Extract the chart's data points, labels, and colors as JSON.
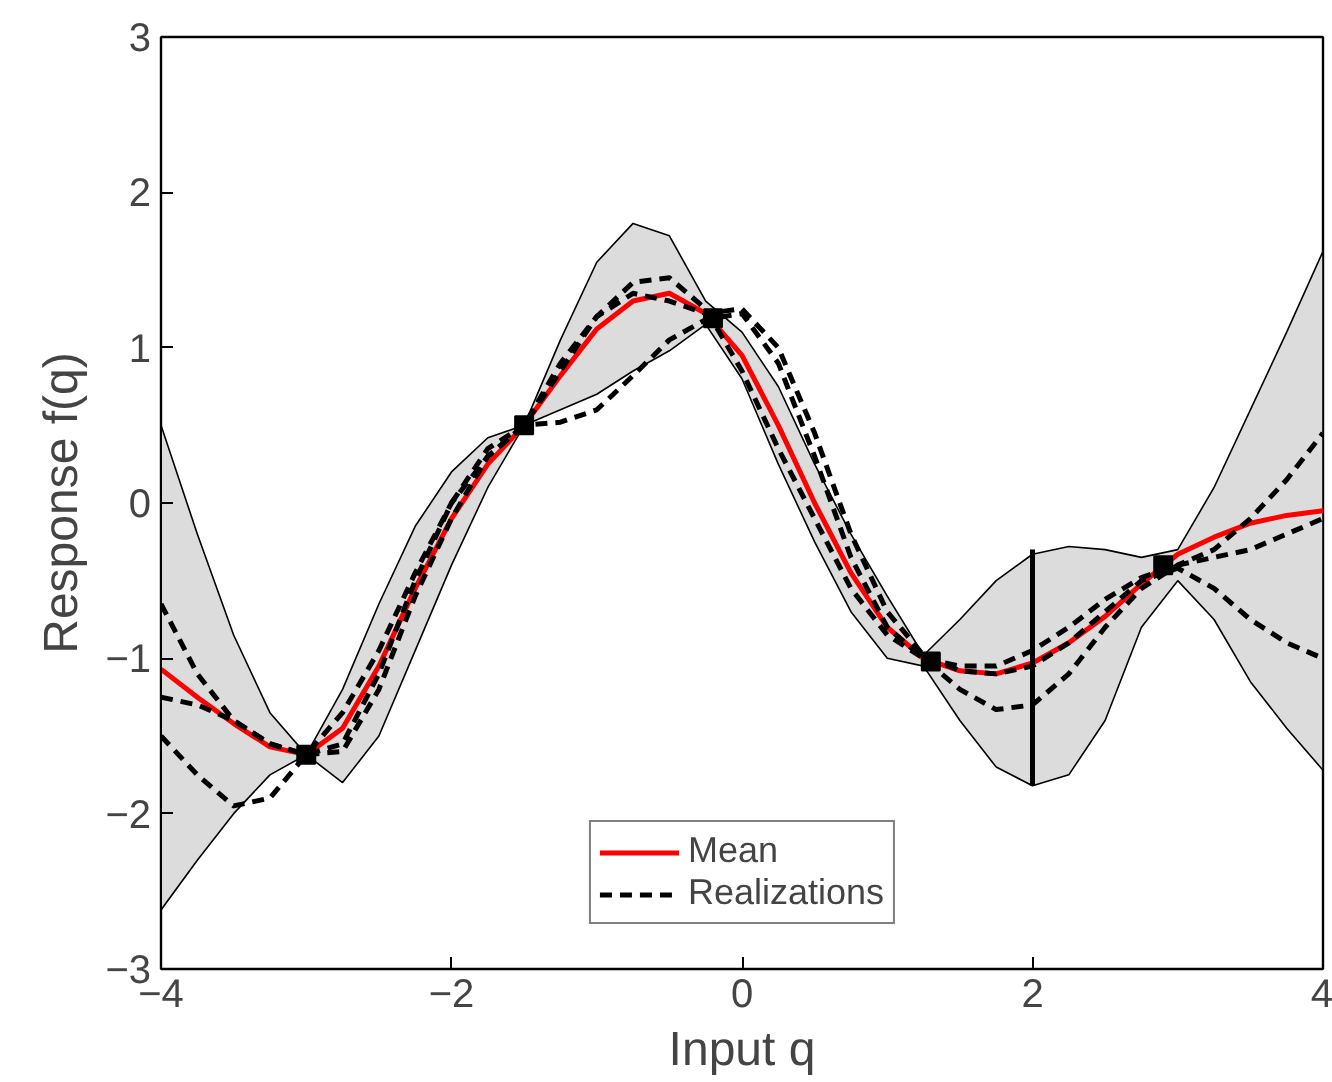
{
  "chart_data": {
    "type": "line",
    "xlabel": "Input q",
    "ylabel": "Response f(q)",
    "x": [
      -4,
      -3.75,
      -3.5,
      -3.25,
      -3,
      -2.75,
      -2.5,
      -2.25,
      -2,
      -1.75,
      -1.5,
      -1.25,
      -1,
      -0.75,
      -0.5,
      -0.25,
      0,
      0.25,
      0.5,
      0.75,
      1,
      1.25,
      1.5,
      1.75,
      2,
      2.25,
      2.5,
      2.75,
      3,
      3.25,
      3.5,
      3.75,
      4
    ],
    "series": [
      {
        "name": "Mean",
        "color": "#ff0000",
        "line_style": "solid",
        "values": [
          -1.07,
          -1.25,
          -1.42,
          -1.57,
          -1.62,
          -1.45,
          -1.05,
          -0.55,
          -0.1,
          0.25,
          0.5,
          0.82,
          1.12,
          1.3,
          1.35,
          1.22,
          0.95,
          0.5,
          0.0,
          -0.45,
          -0.8,
          -1.0,
          -1.08,
          -1.1,
          -1.03,
          -0.9,
          -0.73,
          -0.52,
          -0.33,
          -0.22,
          -0.13,
          -0.08,
          -0.05
        ],
        "upper": [
          0.5,
          -0.2,
          -0.85,
          -1.35,
          -1.62,
          -1.2,
          -0.65,
          -0.15,
          0.2,
          0.42,
          0.5,
          1.05,
          1.55,
          1.8,
          1.72,
          1.3,
          1.1,
          0.75,
          0.25,
          -0.2,
          -0.6,
          -0.98,
          -0.75,
          -0.5,
          -0.33,
          -0.28,
          -0.3,
          -0.35,
          -0.3,
          0.1,
          0.6,
          1.1,
          1.62
        ],
        "lower": [
          -2.62,
          -2.3,
          -2.0,
          -1.75,
          -1.62,
          -1.8,
          -1.5,
          -0.95,
          -0.4,
          0.1,
          0.5,
          0.6,
          0.7,
          0.85,
          0.98,
          1.15,
          0.8,
          0.25,
          -0.25,
          -0.7,
          -1.0,
          -1.05,
          -1.4,
          -1.7,
          -1.82,
          -1.75,
          -1.4,
          -0.8,
          -0.5,
          -0.75,
          -1.15,
          -1.45,
          -1.72
        ]
      },
      {
        "name": "Realizations",
        "color": "#000000",
        "line_style": "dashed",
        "values": [
          -0.65,
          -1.1,
          -1.4,
          -1.55,
          -1.62,
          -1.6,
          -1.2,
          -0.6,
          -0.1,
          0.3,
          0.5,
          0.85,
          1.2,
          1.42,
          1.45,
          1.25,
          0.85,
          0.35,
          -0.1,
          -0.55,
          -0.85,
          -1.0,
          -1.2,
          -1.33,
          -1.3,
          -1.1,
          -0.8,
          -0.55,
          -0.4,
          -0.3,
          -0.1,
          0.15,
          0.45
        ]
      },
      {
        "color": "#000000",
        "line_style": "dashed",
        "values": [
          -1.25,
          -1.3,
          -1.4,
          -1.55,
          -1.62,
          -1.55,
          -1.1,
          -0.5,
          0.0,
          0.35,
          0.5,
          0.52,
          0.6,
          0.82,
          1.05,
          1.18,
          1.22,
          0.9,
          0.3,
          -0.35,
          -0.8,
          -1.0,
          -1.05,
          -1.05,
          -0.95,
          -0.8,
          -0.62,
          -0.48,
          -0.4,
          -0.35,
          -0.3,
          -0.2,
          -0.1
        ]
      },
      {
        "color": "#000000",
        "line_style": "dashed",
        "values": [
          -1.5,
          -1.75,
          -1.95,
          -1.9,
          -1.62,
          -1.35,
          -0.95,
          -0.45,
          0.0,
          0.3,
          0.5,
          0.9,
          1.2,
          1.35,
          1.3,
          1.22,
          1.25,
          1.0,
          0.45,
          -0.2,
          -0.7,
          -0.98,
          -1.08,
          -1.1,
          -1.05,
          -0.9,
          -0.7,
          -0.5,
          -0.42,
          -0.55,
          -0.75,
          -0.9,
          -1.0
        ]
      },
      {
        "type": "line",
        "color": "#000000",
        "line_style": "solid",
        "x": [
          2,
          2
        ],
        "values": [
          -1.82,
          -0.3
        ]
      },
      {
        "type": "scatter",
        "marker": "square",
        "color": "#000000",
        "x": [
          -3,
          -1.5,
          -0.2,
          1.3,
          2.9
        ],
        "values": [
          -1.62,
          0.5,
          1.19,
          -1.02,
          -0.4
        ]
      }
    ],
    "xlim": [
      -4,
      4
    ],
    "xticks": [
      -4,
      -2,
      0,
      2,
      4
    ],
    "ylim": [
      -3,
      3
    ],
    "yticks": [
      -3,
      -2,
      -1,
      0,
      1,
      2,
      3
    ],
    "grid": false,
    "legend": "bottom"
  }
}
